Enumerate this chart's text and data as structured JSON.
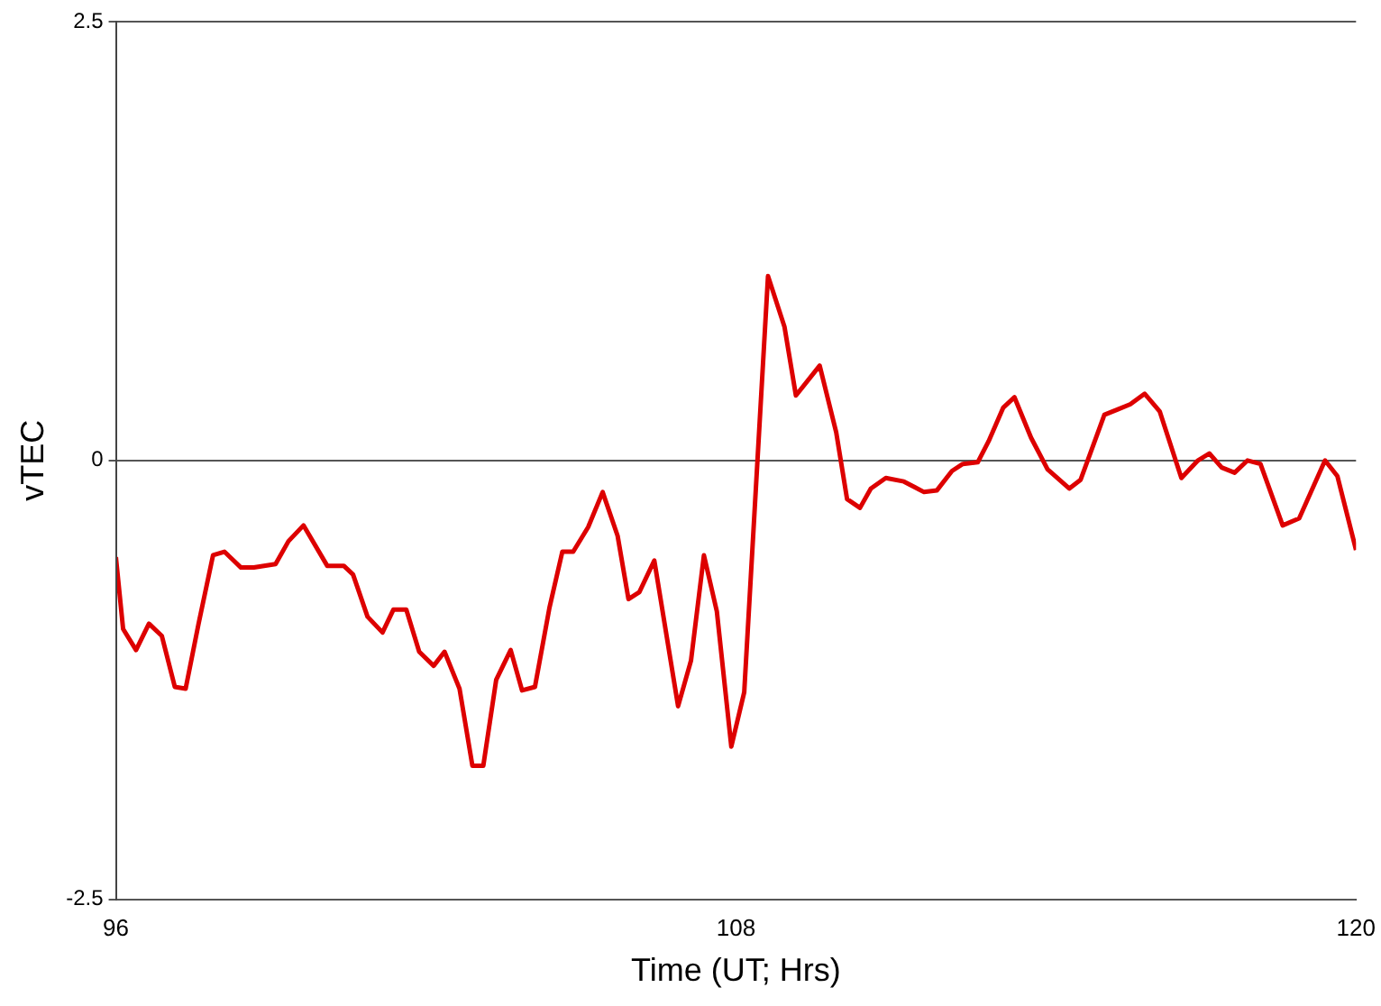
{
  "chart_data": {
    "type": "line",
    "xlabel": "Time (UT; Hrs)",
    "ylabel": "vTEC",
    "xlim": [
      96,
      120
    ],
    "xticks": [
      96,
      108,
      120
    ],
    "ylim": [
      -2.5,
      2.5
    ],
    "yticks": [
      -2.5,
      0,
      2.5
    ],
    "grid": "y",
    "line_style": "solid",
    "series": [
      {
        "color": "#dd0000",
        "x": [
          96,
          96.14,
          96.39,
          96.64,
          96.89,
          97.14,
          97.35,
          97.6,
          97.88,
          98.1,
          98.42,
          98.67,
          99.09,
          99.34,
          99.63,
          100.09,
          100.41,
          100.59,
          100.87,
          101.16,
          101.37,
          101.62,
          101.87,
          102.15,
          102.36,
          102.65,
          102.9,
          103.11,
          103.36,
          103.64,
          103.86,
          104.11,
          104.39,
          104.64,
          104.85,
          105.14,
          105.42,
          105.71,
          105.92,
          106.13,
          106.42,
          106.88,
          107.13,
          107.38,
          107.63,
          107.91,
          108.16,
          108.62,
          108.94,
          109.16,
          109.62,
          109.94,
          110.15,
          110.4,
          110.61,
          110.9,
          111.25,
          111.64,
          111.89,
          112.18,
          112.39,
          112.68,
          112.89,
          113.17,
          113.39,
          113.71,
          114.03,
          114.45,
          114.67,
          115.13,
          115.38,
          115.63,
          115.91,
          116.2,
          116.62,
          116.94,
          117.16,
          117.4,
          117.65,
          117.9,
          118.15,
          118.58,
          118.9,
          119.4,
          119.64,
          120
        ],
        "values": [
          -0.55,
          -0.96,
          -1.08,
          -0.93,
          -1,
          -1.29,
          -1.3,
          -0.93,
          -0.54,
          -0.52,
          -0.61,
          -0.61,
          -0.59,
          -0.46,
          -0.37,
          -0.6,
          -0.6,
          -0.65,
          -0.89,
          -0.98,
          -0.85,
          -0.85,
          -1.09,
          -1.17,
          -1.09,
          -1.3,
          -1.74,
          -1.74,
          -1.25,
          -1.08,
          -1.31,
          -1.29,
          -0.84,
          -0.52,
          -0.52,
          -0.38,
          -0.18,
          -0.43,
          -0.79,
          -0.75,
          -0.57,
          -1.4,
          -1.14,
          -0.54,
          -0.86,
          -1.63,
          -1.32,
          1.05,
          0.76,
          0.37,
          0.54,
          0.16,
          -0.22,
          -0.27,
          -0.16,
          -0.1,
          -0.12,
          -0.18,
          -0.17,
          -0.06,
          -0.02,
          -0.01,
          0.11,
          0.3,
          0.36,
          0.13,
          -0.05,
          -0.16,
          -0.11,
          0.26,
          0.29,
          0.32,
          0.38,
          0.28,
          -0.1,
          0,
          0.04,
          -0.04,
          -0.07,
          0,
          -0.02,
          -0.37,
          -0.33,
          0,
          -0.09,
          -0.51
        ]
      }
    ]
  }
}
